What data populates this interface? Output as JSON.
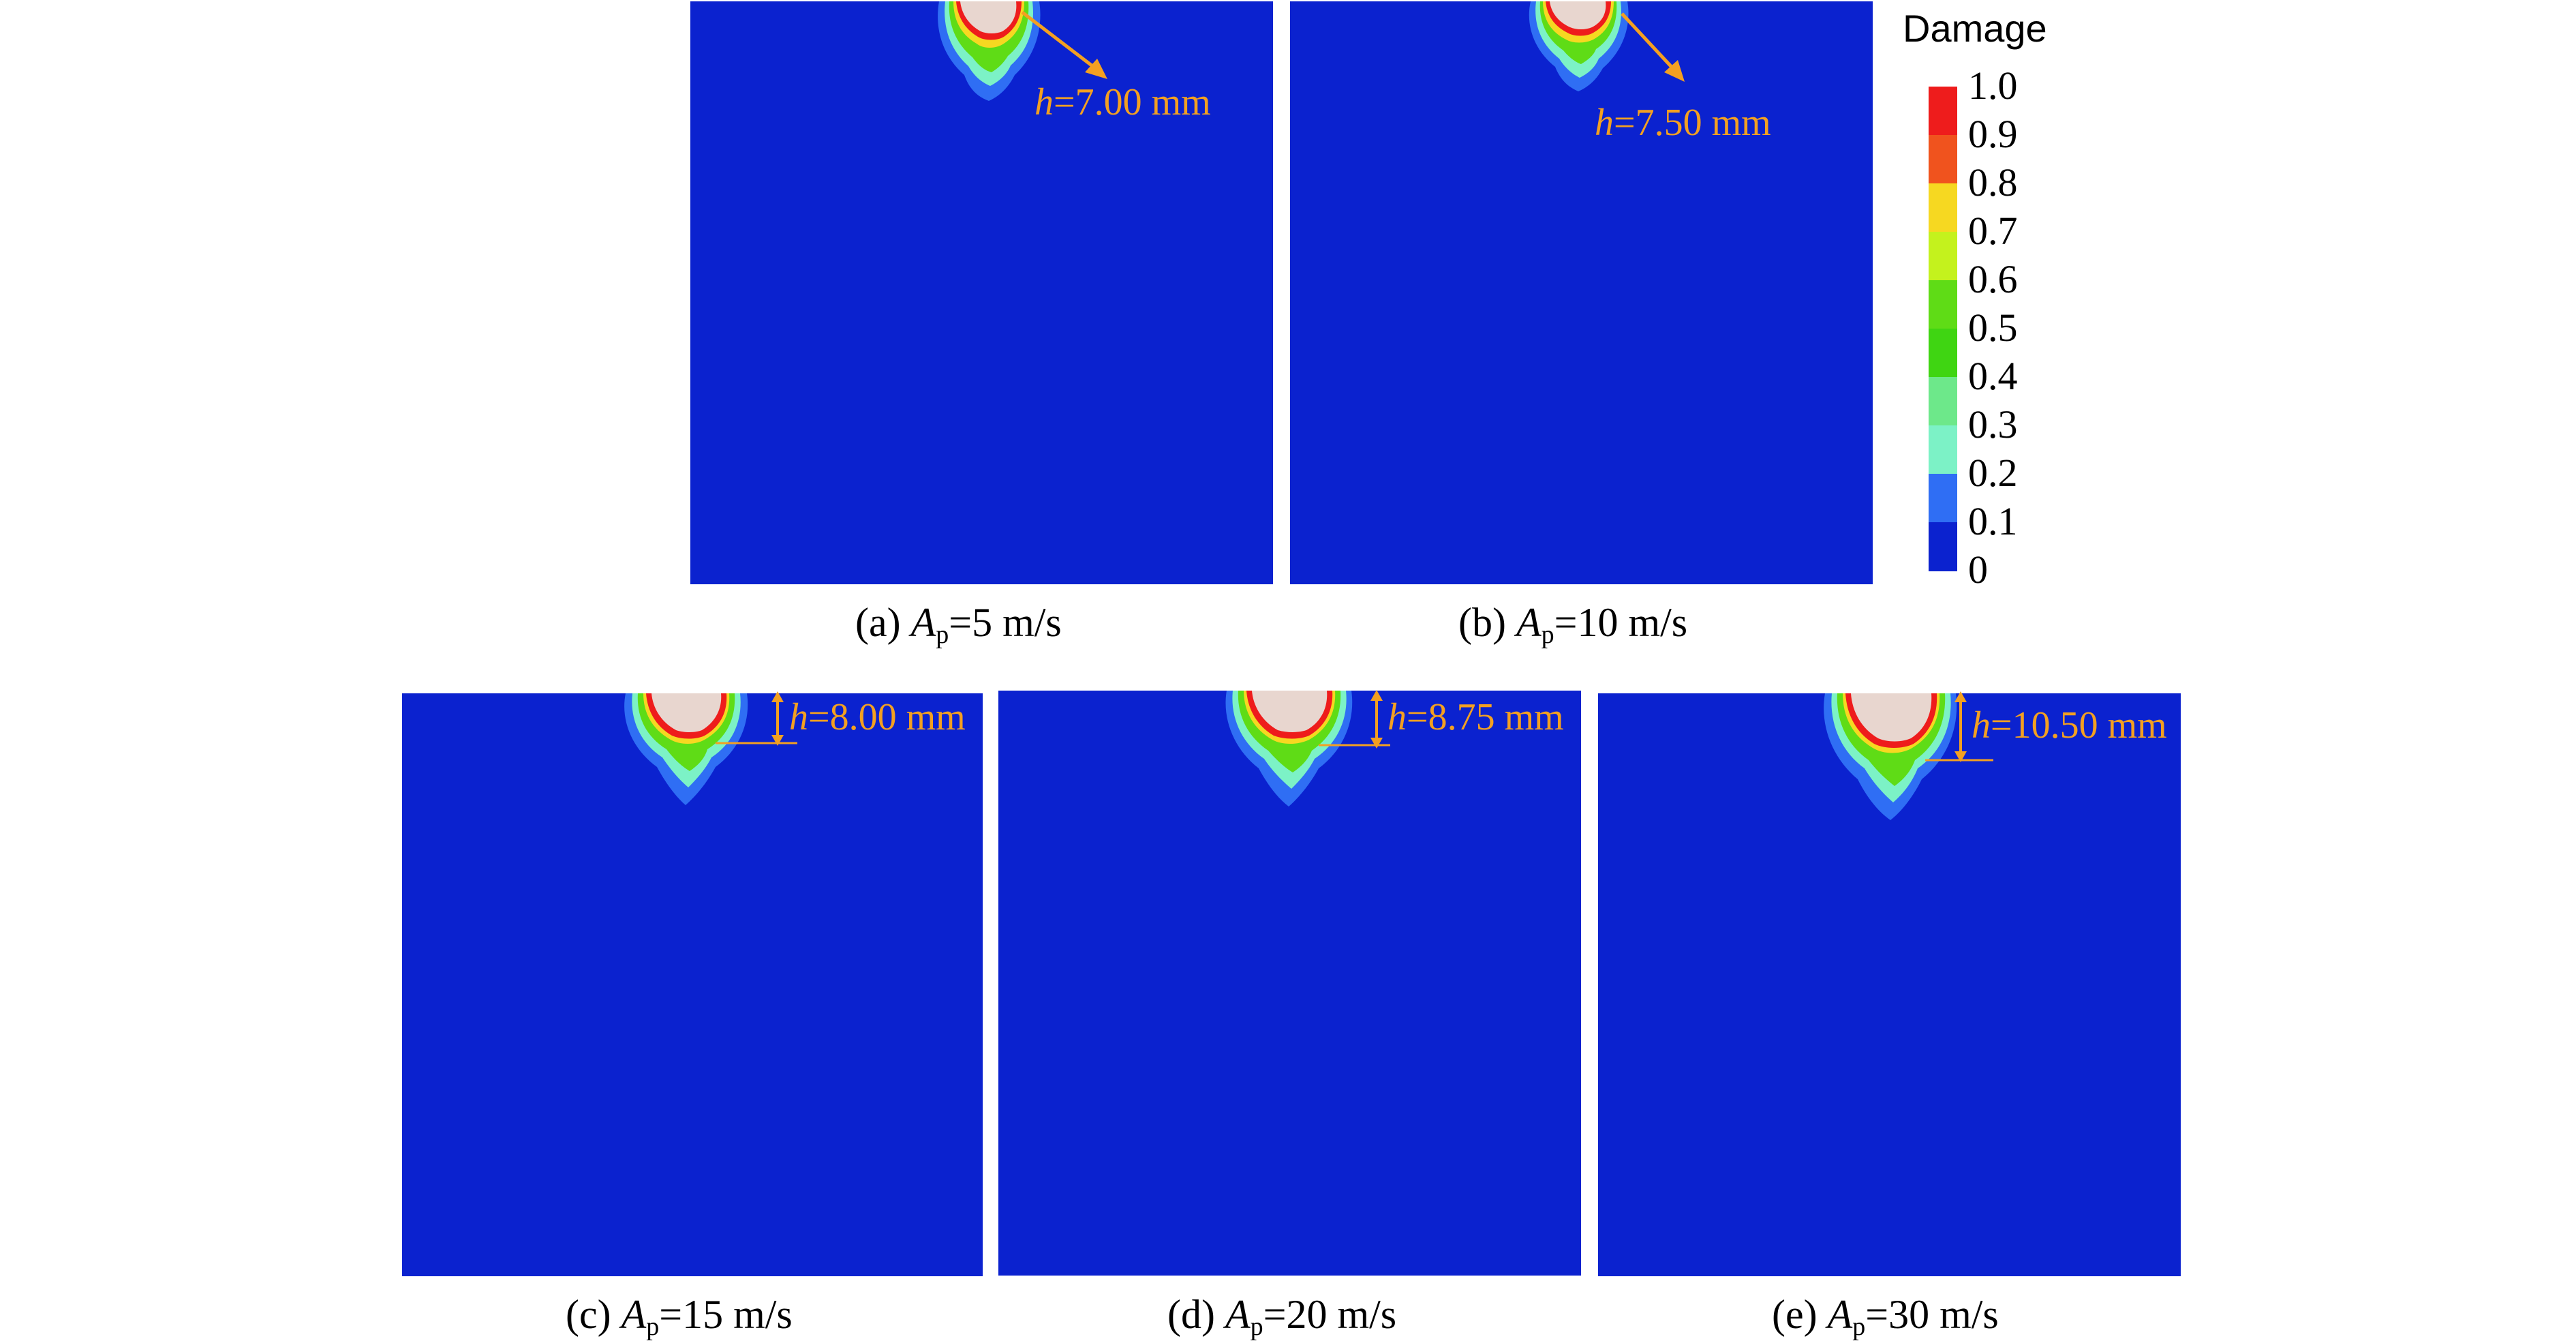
{
  "colors": {
    "background_blue": "#0b22cf",
    "annotation_orange": "#f3a021",
    "crater_fill": "#e8d6cf"
  },
  "legend": {
    "title": "Damage",
    "ticks": [
      "1.0",
      "0.9",
      "0.8",
      "0.7",
      "0.6",
      "0.5",
      "0.4",
      "0.3",
      "0.2",
      "0.1",
      "0"
    ],
    "colors": [
      "#ee1c1c",
      "#f0531e",
      "#f6d821",
      "#c4f21d",
      "#5fdc16",
      "#3fd512",
      "#6de88a",
      "#7cf2c6",
      "#2f6ef4",
      "#0b22cf"
    ]
  },
  "panels": [
    {
      "id": "a",
      "caption_prefix": "(a) ",
      "caption_var": "A",
      "caption_sub": "p",
      "caption_suffix": "=5 m/s",
      "h_var": "h",
      "h_text": "=7.00 mm",
      "damage_depth_mm": 7.0
    },
    {
      "id": "b",
      "caption_prefix": "(b) ",
      "caption_var": "A",
      "caption_sub": "p",
      "caption_suffix": "=10 m/s",
      "h_var": "h",
      "h_text": "=7.50 mm",
      "damage_depth_mm": 7.5
    },
    {
      "id": "c",
      "caption_prefix": "(c) ",
      "caption_var": "A",
      "caption_sub": "p",
      "caption_suffix": "=15 m/s",
      "h_var": "h",
      "h_text": "=8.00 mm",
      "damage_depth_mm": 8.0
    },
    {
      "id": "d",
      "caption_prefix": "(d) ",
      "caption_var": "A",
      "caption_sub": "p",
      "caption_suffix": "=20 m/s",
      "h_var": "h",
      "h_text": "=8.75 mm",
      "damage_depth_mm": 8.75
    },
    {
      "id": "e",
      "caption_prefix": "(e) ",
      "caption_var": "A",
      "caption_sub": "p",
      "caption_suffix": "=30 m/s",
      "h_var": "h",
      "h_text": "=10.50 mm",
      "damage_depth_mm": 10.5
    }
  ]
}
